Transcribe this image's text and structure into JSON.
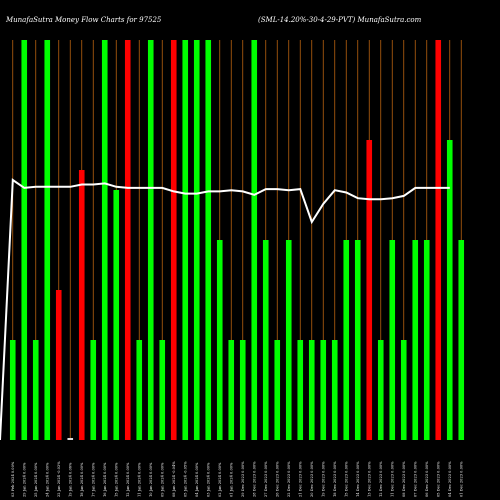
{
  "chart_data": {
    "type": "bar",
    "title_left": "MunafaSutra  Money Flow  Charts for 97525",
    "title_right": "(SML-14.20%-30-4-29-PVT) MunafaSutra.com",
    "colors": {
      "background": "#000000",
      "up": "#00ff00",
      "down": "#ff0000",
      "grid": "#b8620f",
      "line": "#ffffff"
    },
    "categories": [
      "03 Feb 2024 0.00%",
      "29 Jan 2024 0.00%",
      "25 Jan 2024 0.00%",
      "24 Jan 2024 0.00%",
      "22 Jan 2024 -0.02%",
      "19 Jan 2024 0.06%",
      "18 Jan 2024 0.00%",
      "17 Jan 2024 0.00%",
      "16 Jan 2024 0.00%",
      "15 Jan 2024 0.00%",
      "12 Jan 2024 0.00%",
      "11 Jan 2024 0.00%",
      "10 Jan 2024 0.00%",
      "09 Jan 2024 0.00%",
      "08 Jan 2024 -0.04%",
      "05 Jan 2024 -0.05%",
      "04 Jan 2024 0.00%",
      "03 Jan 2024 0.00%",
      "02 Jan 2024 0.00%",
      "01 Jan 2024 0.00%",
      "29 Dec 2023 0.00%",
      "28 Dec 2023 0.00%",
      "27 Dec 2023 0.00%",
      "26 Dec 2023 0.00%",
      "22 Dec 2023 0.00%",
      "21 Dec 2023 0.00%",
      "20 Dec 2023 0.00%",
      "19 Dec 2023 0.00%",
      "18 Dec 2023 0.00%",
      "15 Dec 2023 0.00%",
      "14 Dec 2023 0.00%",
      "13 Dec 2023 0.00%",
      "12 Dec 2023 0.00%",
      "11 Dec 2023 0.00%",
      "08 Dec 2023 0.00%",
      "07 Dec 2023 0.00%",
      "06 Dec 2023 0.00%",
      "05 Dec 2023 0.00%",
      "04 Dec 2023 0.00%",
      "01 Dec 2023 0.00%"
    ],
    "bars": [
      {
        "value": 100,
        "color": "up"
      },
      {
        "value": 400,
        "color": "up"
      },
      {
        "value": 100,
        "color": "up"
      },
      {
        "value": 400,
        "color": "up"
      },
      {
        "value": 150,
        "color": "down"
      },
      {
        "value": 2,
        "color": "up"
      },
      {
        "value": 270,
        "color": "down"
      },
      {
        "value": 100,
        "color": "up"
      },
      {
        "value": 400,
        "color": "up"
      },
      {
        "value": 250,
        "color": "up"
      },
      {
        "value": 400,
        "color": "down"
      },
      {
        "value": 100,
        "color": "up"
      },
      {
        "value": 400,
        "color": "up"
      },
      {
        "value": 100,
        "color": "up"
      },
      {
        "value": 400,
        "color": "down"
      },
      {
        "value": 400,
        "color": "up"
      },
      {
        "value": 400,
        "color": "up"
      },
      {
        "value": 400,
        "color": "up"
      },
      {
        "value": 200,
        "color": "up"
      },
      {
        "value": 100,
        "color": "up"
      },
      {
        "value": 100,
        "color": "up"
      },
      {
        "value": 400,
        "color": "up"
      },
      {
        "value": 200,
        "color": "up"
      },
      {
        "value": 100,
        "color": "up"
      },
      {
        "value": 200,
        "color": "up"
      },
      {
        "value": 100,
        "color": "up"
      },
      {
        "value": 100,
        "color": "up"
      },
      {
        "value": 100,
        "color": "up"
      },
      {
        "value": 100,
        "color": "up"
      },
      {
        "value": 200,
        "color": "up"
      },
      {
        "value": 200,
        "color": "up"
      },
      {
        "value": 300,
        "color": "down"
      },
      {
        "value": 100,
        "color": "up"
      },
      {
        "value": 200,
        "color": "up"
      },
      {
        "value": 100,
        "color": "up"
      },
      {
        "value": 200,
        "color": "up"
      },
      {
        "value": 200,
        "color": "up"
      },
      {
        "value": 400,
        "color": "down"
      },
      {
        "value": 300,
        "color": "up"
      },
      {
        "value": 200,
        "color": "up"
      }
    ],
    "line": [
      258,
      251,
      252,
      252,
      252,
      252,
      254,
      254,
      255,
      252,
      251,
      251,
      251,
      251,
      248,
      246,
      246,
      248,
      248,
      249,
      248,
      245,
      250,
      250,
      249,
      250,
      221,
      237,
      249,
      247,
      242,
      241,
      241,
      242,
      244,
      251,
      251,
      251,
      251
    ],
    "line_start": 0,
    "ylim": [
      0,
      400
    ],
    "grid": true,
    "legend": "none"
  }
}
